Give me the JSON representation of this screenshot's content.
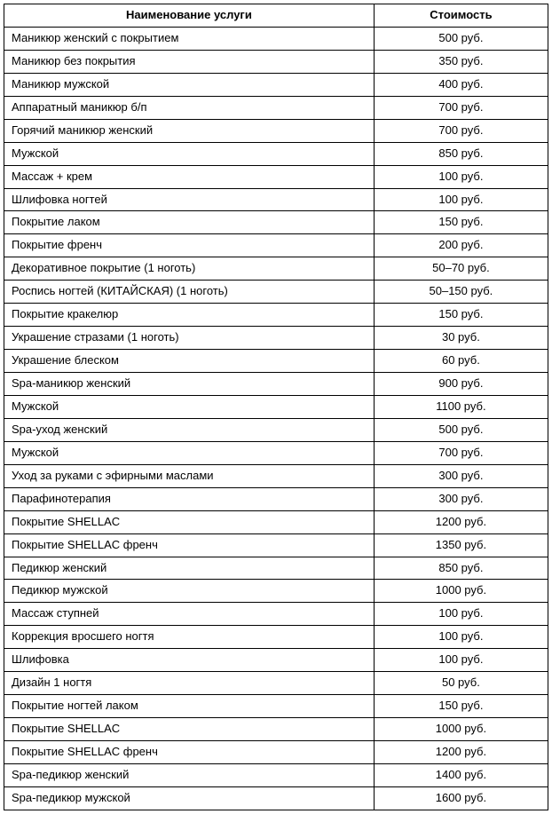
{
  "table": {
    "columns": [
      {
        "key": "name",
        "header": "Наименование услуги",
        "width": "68%",
        "align": "left"
      },
      {
        "key": "price",
        "header": "Стоимость",
        "width": "32%",
        "align": "center"
      }
    ],
    "header_fontsize": 13,
    "header_fontweight": "bold",
    "cell_fontsize": 13,
    "border_color": "#000000",
    "background_color": "#ffffff",
    "text_color": "#000000",
    "rows": [
      {
        "name": "Маникюр женский с покрытием",
        "price": "500 руб."
      },
      {
        "name": "Маникюр без покрытия",
        "price": "350 руб."
      },
      {
        "name": "Маникюр мужской",
        "price": "400 руб."
      },
      {
        "name": "Аппаратный маникюр б/п",
        "price": "700 руб."
      },
      {
        "name": "Горячий маникюр женский",
        "price": "700 руб."
      },
      {
        "name": "Мужской",
        "price": "850 руб."
      },
      {
        "name": "Массаж + крем",
        "price": "100 руб."
      },
      {
        "name": "Шлифовка ногтей",
        "price": "100 руб."
      },
      {
        "name": "Покрытие лаком",
        "price": "150 руб."
      },
      {
        "name": "Покрытие френч",
        "price": "200 руб."
      },
      {
        "name": "Декоративное покрытие (1 ноготь)",
        "price": "50–70 руб."
      },
      {
        "name": "Роспись ногтей (КИТАЙСКАЯ) (1 ноготь)",
        "price": "50–150 руб."
      },
      {
        "name": "Покрытие кракелюр",
        "price": "150 руб."
      },
      {
        "name": "Украшение стразами (1 ноготь)",
        "price": "30 руб."
      },
      {
        "name": "Украшение блеском",
        "price": "60 руб."
      },
      {
        "name": "Spa-маникюр женский",
        "price": "900 руб."
      },
      {
        "name": "Мужской",
        "price": "1100 руб."
      },
      {
        "name": "Spa-уход женский",
        "price": "500 руб."
      },
      {
        "name": "Мужской",
        "price": "700 руб."
      },
      {
        "name": "Уход за руками с эфирными маслами",
        "price": "300 руб."
      },
      {
        "name": "Парафинотерапия",
        "price": "300 руб."
      },
      {
        "name": "Покрытие SHELLAC",
        "price": "1200 руб."
      },
      {
        "name": "Покрытие SHELLAC френч",
        "price": "1350 руб."
      },
      {
        "name": "Педикюр женский",
        "price": "850 руб."
      },
      {
        "name": "Педикюр мужской",
        "price": "1000 руб."
      },
      {
        "name": "Массаж ступней",
        "price": "100 руб."
      },
      {
        "name": "Коррекция вросшего ногтя",
        "price": "100 руб."
      },
      {
        "name": "Шлифовка",
        "price": "100 руб."
      },
      {
        "name": "Дизайн 1 ногтя",
        "price": "50 руб."
      },
      {
        "name": "Покрытие ногтей лаком",
        "price": "150 руб."
      },
      {
        "name": "Покрытие SHELLAC",
        "price": "1000 руб."
      },
      {
        "name": "Покрытие SHELLAC френч",
        "price": "1200 руб."
      },
      {
        "name": "Spa-педикюр женский",
        "price": "1400 руб."
      },
      {
        "name": "Spa-педикюр мужской",
        "price": "1600 руб."
      }
    ]
  }
}
